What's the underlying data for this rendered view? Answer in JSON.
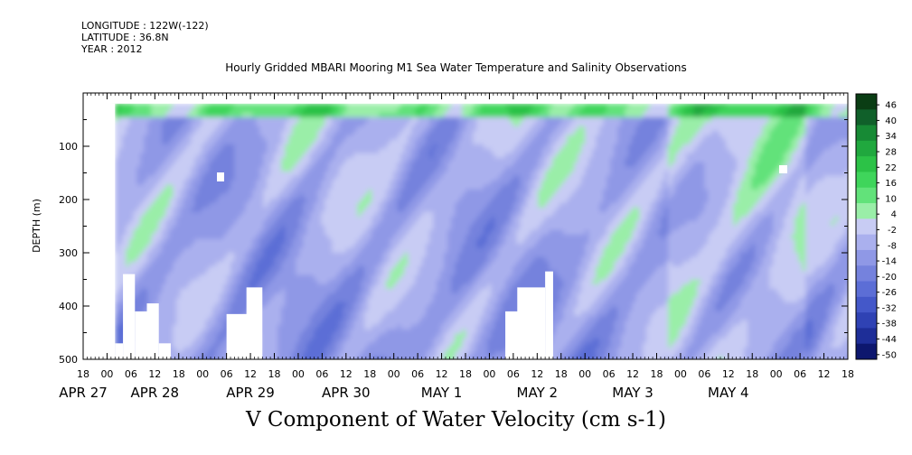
{
  "header": {
    "longitude": "LONGITUDE : 122W(-122)",
    "latitude": "LATITUDE : 36.8N",
    "year": "YEAR : 2012",
    "title": "Hourly Gridded MBARI Mooring M1 Sea Water Temperature and Salinity Observations"
  },
  "chart_data": {
    "type": "heatmap",
    "title": "V Component of Water Velocity (cm s-1)",
    "ylabel": "DEPTH (m)",
    "xlabel": "",
    "y_axis": {
      "range": [
        500,
        0
      ],
      "direction": "depth-increasing-down",
      "ticks": [
        100,
        200,
        300,
        400,
        500
      ],
      "tick_labels": [
        "100",
        "200",
        "300",
        "400",
        "500"
      ]
    },
    "x_axis": {
      "range_hours": [
        -6,
        186
      ],
      "hour_ticks": [
        -6,
        0,
        6,
        12,
        18,
        24,
        30,
        36,
        42,
        48,
        54,
        60,
        66,
        72,
        78,
        84,
        90,
        96,
        102,
        108,
        114,
        120,
        126,
        132,
        138,
        144,
        150,
        156,
        162,
        168,
        174,
        180,
        186
      ],
      "hour_labels": [
        "18",
        "00",
        "06",
        "12",
        "18",
        "00",
        "06",
        "12",
        "18",
        "00",
        "06",
        "12",
        "18",
        "00",
        "06",
        "12",
        "18",
        "00",
        "06",
        "12",
        "18",
        "00",
        "06",
        "12",
        "18",
        "00",
        "06",
        "12",
        "18",
        "00",
        "06",
        "12",
        "18"
      ],
      "date_labels": [
        {
          "text": "APR 27",
          "hour": -6
        },
        {
          "text": "APR 28",
          "hour": 12
        },
        {
          "text": "APR 29",
          "hour": 36
        },
        {
          "text": "APR 30",
          "hour": 60
        },
        {
          "text": "MAY  1",
          "hour": 84
        },
        {
          "text": "MAY  2",
          "hour": 108
        },
        {
          "text": "MAY  3",
          "hour": 132
        },
        {
          "text": "MAY  4",
          "hour": 156
        }
      ]
    },
    "data_start_hour": 2,
    "data_top_depth": 20,
    "colorbar": {
      "levels": [
        46,
        40,
        34,
        28,
        22,
        16,
        10,
        4,
        -2,
        -8,
        -14,
        -20,
        -26,
        -32,
        -38,
        -44,
        -50
      ],
      "labels": [
        "46",
        "40",
        "34",
        "28",
        "22",
        "16",
        "10",
        "4",
        "-2",
        "-8",
        "-14",
        "-20",
        "-26",
        "-32",
        "-38",
        "-44",
        "-50"
      ],
      "colors": [
        "#0a3d14",
        "#10602a",
        "#178a35",
        "#20a83e",
        "#2cc247",
        "#3fd55b",
        "#62e27a",
        "#9aeea8",
        "#c8ccf4",
        "#aab0ee",
        "#8f98e6",
        "#7582dd",
        "#5c6ed6",
        "#4458c9",
        "#2f42b4",
        "#1e2e98",
        "#0d176e"
      ]
    },
    "low_gaps_bottom": [
      {
        "hours": [
          2,
          4
        ],
        "top_depth": 470
      },
      {
        "hours": [
          4,
          7
        ],
        "top_depth": 340
      },
      {
        "hours": [
          7,
          10
        ],
        "top_depth": 410
      },
      {
        "hours": [
          10,
          13
        ],
        "top_depth": 395
      },
      {
        "hours": [
          13,
          16
        ],
        "top_depth": 470
      },
      {
        "hours": [
          30,
          37
        ],
        "top_depth": 415
      },
      {
        "hours": [
          35,
          39
        ],
        "top_depth": 365
      },
      {
        "hours": [
          100,
          108
        ],
        "top_depth": 410
      },
      {
        "hours": [
          103,
          110
        ],
        "top_depth": 365
      },
      {
        "hours": [
          110,
          112
        ],
        "top_depth": 335
      }
    ]
  }
}
